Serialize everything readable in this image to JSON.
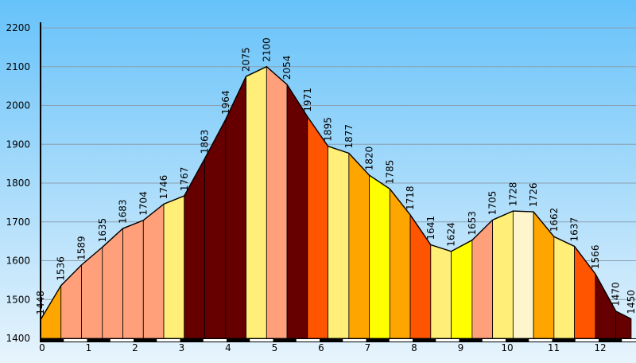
{
  "chart_data": {
    "type": "area",
    "title": "",
    "xlabel": "",
    "ylabel": "",
    "xlim": [
      0,
      12.8
    ],
    "ylim": [
      1400,
      2200
    ],
    "x_ticks": [
      "0",
      "1",
      "2",
      "3",
      "4",
      "5",
      "6",
      "7",
      "8",
      "9",
      "10",
      "11",
      "12"
    ],
    "y_ticks": [
      "1400",
      "1500",
      "1600",
      "1700",
      "1800",
      "1900",
      "2000",
      "2100",
      "2200"
    ],
    "grid": true,
    "background": [
      "#66c2fa",
      "#e8f4fc"
    ],
    "points": [
      {
        "x": 0.0,
        "y": 1448,
        "label": "1448"
      },
      {
        "x": 0.44,
        "y": 1536,
        "label": "1536"
      },
      {
        "x": 0.88,
        "y": 1589,
        "label": "1589"
      },
      {
        "x": 1.33,
        "y": 1635,
        "label": "1635"
      },
      {
        "x": 1.77,
        "y": 1683,
        "label": "1683"
      },
      {
        "x": 2.21,
        "y": 1704,
        "label": "1704"
      },
      {
        "x": 2.65,
        "y": 1746,
        "label": "1746"
      },
      {
        "x": 3.09,
        "y": 1767,
        "label": "1767"
      },
      {
        "x": 3.53,
        "y": 1863,
        "label": "1863"
      },
      {
        "x": 3.98,
        "y": 1964,
        "label": "1964"
      },
      {
        "x": 4.42,
        "y": 2075,
        "label": "2075"
      },
      {
        "x": 4.86,
        "y": 2100,
        "label": "2100"
      },
      {
        "x": 5.3,
        "y": 2054,
        "label": "2054"
      },
      {
        "x": 5.74,
        "y": 1971,
        "label": "1971"
      },
      {
        "x": 6.18,
        "y": 1895,
        "label": "1895"
      },
      {
        "x": 6.63,
        "y": 1877,
        "label": "1877"
      },
      {
        "x": 7.07,
        "y": 1820,
        "label": "1820"
      },
      {
        "x": 7.51,
        "y": 1785,
        "label": "1785"
      },
      {
        "x": 7.95,
        "y": 1718,
        "label": "1718"
      },
      {
        "x": 8.39,
        "y": 1641,
        "label": "1641"
      },
      {
        "x": 8.83,
        "y": 1624,
        "label": "1624"
      },
      {
        "x": 9.28,
        "y": 1653,
        "label": "1653"
      },
      {
        "x": 9.72,
        "y": 1705,
        "label": "1705"
      },
      {
        "x": 10.16,
        "y": 1728,
        "label": "1728"
      },
      {
        "x": 10.6,
        "y": 1726,
        "label": "1726"
      },
      {
        "x": 11.04,
        "y": 1662,
        "label": "1662"
      },
      {
        "x": 11.48,
        "y": 1637,
        "label": "1637"
      },
      {
        "x": 11.93,
        "y": 1566,
        "label": "1566"
      },
      {
        "x": 12.37,
        "y": 1470,
        "label": "1470"
      },
      {
        "x": 12.7,
        "y": 1450,
        "label": "1450"
      }
    ],
    "segment_colors": [
      "#ffa500",
      "#ffa07a",
      "#ffa07a",
      "#ffa07a",
      "#ffa07a",
      "#ffa07a",
      "#ffee77",
      "#660000",
      "#660000",
      "#660000",
      "#ffee77",
      "#ffa07a",
      "#660000",
      "#ff5500",
      "#ffee77",
      "#ffa500",
      "#ffff00",
      "#ffa500",
      "#ff5500",
      "#ffee77",
      "#ffff00",
      "#ffa07a",
      "#ffee77",
      "#fff5cc",
      "#ffa500",
      "#ffee77",
      "#ff5500",
      "#660000",
      "#660000"
    ]
  }
}
